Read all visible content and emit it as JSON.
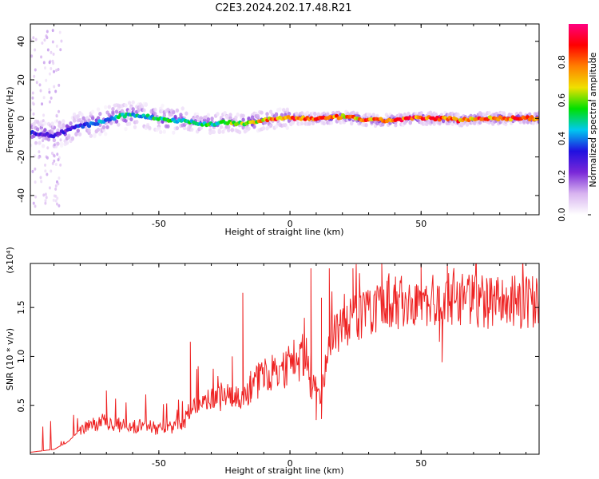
{
  "title": "C2E3.2024.202.17.48.R21",
  "chart_data": [
    {
      "type": "heatmap",
      "xlabel": "Height of straight line (km)",
      "ylabel": "Frequency (Hz)",
      "xlim": [
        -99,
        95
      ],
      "ylim": [
        -50,
        49
      ],
      "xticks": [
        -50,
        0,
        50
      ],
      "yticks": [
        -40,
        -20,
        0,
        20,
        40
      ],
      "colorbar": {
        "label": "Normalized spectral amplitude",
        "range": [
          0,
          1
        ],
        "ticks": [
          "0.0",
          "0.2",
          "0.4",
          "0.6",
          "0.8"
        ],
        "colors": [
          "#ffffff",
          "#d8b4f0",
          "#7a28d8",
          "#2010e0",
          "#00c8f0",
          "#00e000",
          "#f0e000",
          "#ff8000",
          "#ff0000",
          "#ff0080"
        ]
      },
      "ridge": {
        "x": [
          -99,
          -95,
          -90,
          -85,
          -80,
          -75,
          -70,
          -65,
          -60,
          -55,
          -50,
          -45,
          -40,
          -35,
          -30,
          -25,
          -20,
          -15,
          -10,
          -5,
          0,
          5,
          10,
          15,
          20,
          25,
          30,
          35,
          40,
          45,
          50,
          55,
          60,
          65,
          70,
          75,
          80,
          85,
          90,
          95
        ],
        "frequency": [
          -7,
          -8,
          -9,
          -6,
          -4,
          -3,
          -1,
          1,
          2,
          1,
          0,
          -1,
          -1,
          -3,
          -3,
          -2,
          -3,
          -2,
          -1,
          0,
          0,
          0,
          0,
          0,
          1,
          0,
          -1,
          -1,
          -1,
          0,
          0,
          0,
          0,
          -1,
          0,
          0,
          0,
          0,
          0,
          0
        ],
        "amplitude": [
          0.35,
          0.3,
          0.3,
          0.3,
          0.35,
          0.4,
          0.45,
          0.5,
          0.5,
          0.5,
          0.55,
          0.55,
          0.5,
          0.55,
          0.55,
          0.6,
          0.65,
          0.7,
          0.8,
          0.85,
          0.9,
          0.85,
          0.85,
          0.85,
          0.8,
          0.8,
          0.85,
          0.85,
          0.85,
          0.9,
          0.9,
          0.85,
          0.85,
          0.85,
          0.85,
          0.85,
          0.85,
          0.9,
          0.9,
          0.9
        ]
      }
    },
    {
      "type": "line",
      "xlabel": "Height of straight line (km)",
      "ylabel": "SNR (10 * v/v)",
      "yscale_label": "(x10⁴)",
      "xlim": [
        -99,
        95
      ],
      "ylim": [
        0,
        1.95
      ],
      "xticks": [
        -50,
        0,
        50
      ],
      "yticks": [
        0.5,
        1.0,
        1.5
      ],
      "ytick_labels": [
        "0.5",
        "1.0",
        "1.5"
      ],
      "color": "#ee2222",
      "trend": {
        "x": [
          -99,
          -90,
          -85,
          -80,
          -75,
          -70,
          -65,
          -60,
          -55,
          -50,
          -45,
          -40,
          -35,
          -30,
          -25,
          -20,
          -18,
          -15,
          -10,
          -5,
          0,
          3,
          5,
          8,
          10,
          12,
          15,
          20,
          25,
          30,
          35,
          40,
          50,
          60,
          70,
          80,
          90,
          95
        ],
        "y": [
          0.02,
          0.05,
          0.12,
          0.25,
          0.3,
          0.33,
          0.3,
          0.28,
          0.3,
          0.25,
          0.28,
          0.35,
          0.5,
          0.55,
          0.6,
          0.6,
          0.55,
          0.7,
          0.8,
          0.85,
          0.9,
          0.95,
          1.0,
          0.75,
          0.65,
          0.6,
          1.2,
          1.3,
          1.4,
          1.45,
          1.5,
          1.55,
          1.55,
          1.58,
          1.56,
          1.55,
          1.55,
          1.55
        ]
      },
      "peaks": [
        {
          "x": -70,
          "y": 0.65
        },
        {
          "x": -38,
          "y": 1.15
        },
        {
          "x": -35,
          "y": 0.9
        },
        {
          "x": -22,
          "y": 1.0
        },
        {
          "x": -18,
          "y": 1.65
        },
        {
          "x": -15,
          "y": 0.85
        },
        {
          "x": 8,
          "y": 1.9
        },
        {
          "x": 12,
          "y": 1.6
        },
        {
          "x": 15,
          "y": 1.9
        },
        {
          "x": 24,
          "y": 1.9
        },
        {
          "x": 35,
          "y": 1.95
        },
        {
          "x": 50,
          "y": 1.95
        },
        {
          "x": 60,
          "y": 1.95
        },
        {
          "x": 75,
          "y": 1.8
        }
      ],
      "dips": [
        {
          "x": 10,
          "y": 0.35
        },
        {
          "x": 12,
          "y": 0.36
        },
        {
          "x": 58,
          "y": 0.94
        },
        {
          "x": 57,
          "y": 1.15
        }
      ]
    }
  ]
}
